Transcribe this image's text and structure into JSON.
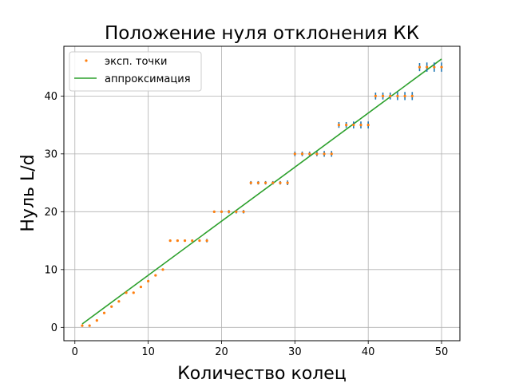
{
  "chart_data": {
    "type": "scatter",
    "title": "Положение нуля отклонения КК",
    "xlabel": "Количество колец",
    "ylabel": "Нуль L/d",
    "xlim": [
      -1.5,
      52.5
    ],
    "ylim": [
      -2.3,
      48.6
    ],
    "xticks": [
      0,
      10,
      20,
      30,
      40,
      50
    ],
    "yticks": [
      0,
      10,
      20,
      30,
      40
    ],
    "grid": true,
    "legend_position": "top-left",
    "series": [
      {
        "name": "эксп. точки",
        "kind": "points",
        "color": "#ff7f0e",
        "error_color": "#1f77b4",
        "x": [
          1,
          2,
          3,
          4,
          5,
          6,
          7,
          8,
          9,
          10,
          11,
          12,
          13,
          14,
          15,
          16,
          17,
          18,
          19,
          20,
          21,
          22,
          23,
          24,
          25,
          26,
          27,
          28,
          29,
          30,
          31,
          32,
          33,
          34,
          35,
          36,
          37,
          38,
          39,
          40,
          41,
          42,
          43,
          44,
          45,
          46,
          47,
          48,
          49,
          50
        ],
        "y": [
          0.3,
          0.3,
          1.2,
          2.5,
          3.6,
          4.5,
          6.0,
          6.0,
          7.0,
          8.0,
          9.0,
          10.0,
          15.0,
          15.0,
          15.0,
          15.0,
          15.0,
          15.0,
          20.0,
          20.0,
          20.0,
          20.0,
          20.0,
          25.0,
          25.0,
          25.0,
          25.0,
          25.0,
          25.0,
          30.0,
          30.0,
          30.0,
          30.0,
          30.0,
          30.0,
          35.0,
          35.0,
          35.0,
          35.0,
          35.0,
          40.0,
          40.0,
          40.0,
          40.0,
          40.0,
          40.0,
          45.0,
          45.0,
          45.0,
          45.0
        ],
        "yerr": [
          0.1,
          0.1,
          0.1,
          0.1,
          0.1,
          0.1,
          0.1,
          0.1,
          0.1,
          0.1,
          0.1,
          0.1,
          0.2,
          0.2,
          0.2,
          0.2,
          0.2,
          0.3,
          0.2,
          0.2,
          0.3,
          0.3,
          0.3,
          0.3,
          0.3,
          0.3,
          0.3,
          0.3,
          0.4,
          0.4,
          0.4,
          0.4,
          0.4,
          0.5,
          0.5,
          0.5,
          0.5,
          0.6,
          0.6,
          0.6,
          0.6,
          0.6,
          0.6,
          0.7,
          0.7,
          0.7,
          0.7,
          0.8,
          0.8,
          0.8
        ]
      },
      {
        "name": "аппроксимация",
        "kind": "line",
        "color": "#2ca02c",
        "x": [
          1,
          50
        ],
        "y": [
          0.6,
          46.4
        ]
      }
    ]
  }
}
